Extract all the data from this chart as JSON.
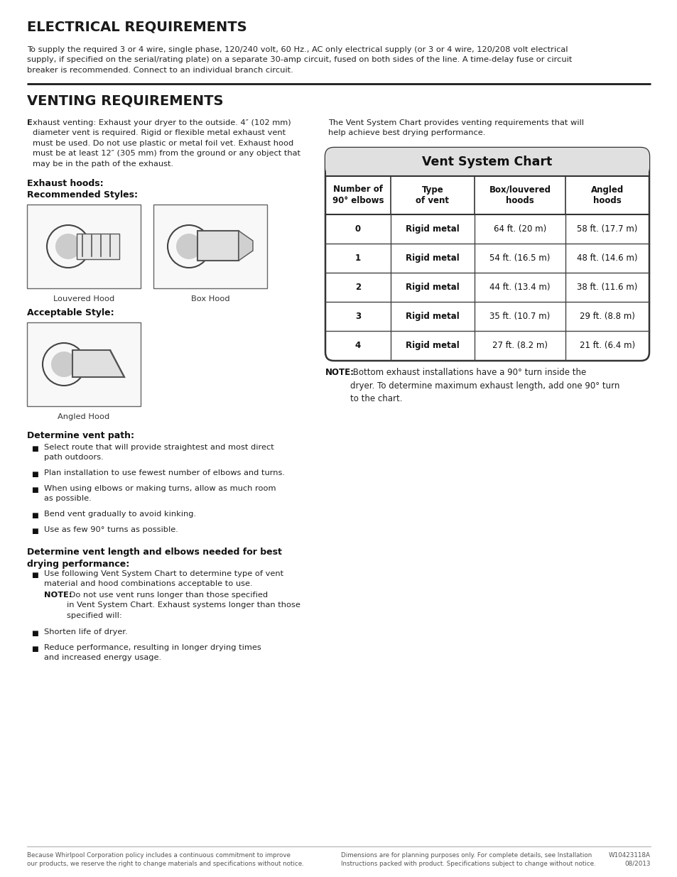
{
  "page_bg": "#ffffff",
  "section1_title": "ELECTRICAL REQUIREMENTS",
  "section1_body": "To supply the required 3 or 4 wire, single phase, 120/240 volt, 60 Hz., AC only electrical supply (or 3 or 4 wire, 120/208 volt electrical\nsupply, if specified on the serial/rating plate) on a separate 30-amp circuit, fused on both sides of the line. A time-delay fuse or circuit\nbreaker is recommended. Connect to an individual branch circuit.",
  "section2_title": "VENTING REQUIREMENTS",
  "venting_left_para_rest": "xhaust venting: Exhaust your dryer to the outside. 4″ (102 mm)\ndiameter vent is required. Rigid or flexible metal exhaust vent\nmust be used. Do not use plastic or metal foil vet. Exhaust hood\nmust be at least 12″ (305 mm) from the ground or any object that\nmay be in the path of the exhaust.",
  "venting_right_para": "The Vent System Chart provides venting requirements that will\nhelp achieve best drying performance.",
  "hoods_heading1": "Exhaust hoods:",
  "hoods_heading2": "Recommended Styles:",
  "louvered_label": "Louvered Hood",
  "box_label": "Box Hood",
  "acceptable_heading": "Acceptable Style:",
  "angled_label": "Angled Hood",
  "table_title": "Vent System Chart",
  "table_headers": [
    "Number of\n90° elbows",
    "Type\nof vent",
    "Box/louvered\nhoods",
    "Angled\nhoods"
  ],
  "table_rows": [
    [
      "0",
      "Rigid metal",
      "64 ft. (20 m)",
      "58 ft. (17.7 m)"
    ],
    [
      "1",
      "Rigid metal",
      "54 ft. (16.5 m)",
      "48 ft. (14.6 m)"
    ],
    [
      "2",
      "Rigid metal",
      "44 ft. (13.4 m)",
      "38 ft. (11.6 m)"
    ],
    [
      "3",
      "Rigid metal",
      "35 ft. (10.7 m)",
      "29 ft. (8.8 m)"
    ],
    [
      "4",
      "Rigid metal",
      "27 ft. (8.2 m)",
      "21 ft. (6.4 m)"
    ]
  ],
  "table_note_bold": "NOTE:",
  "table_note_rest": " Bottom exhaust installations have a 90° turn inside the\ndryer. To determine maximum exhaust length, add one 90° turn\nto the chart.",
  "vent_path_heading": "Determine vent path:",
  "vent_path_bullets": [
    "Select route that will provide straightest and most direct\npath outdoors.",
    "Plan installation to use fewest number of elbows and turns.",
    "When using elbows or making turns, allow as much room\nas possible.",
    "Bend vent gradually to avoid kinking.",
    "Use as few 90° turns as possible."
  ],
  "vent_length_heading": "Determine vent length and elbows needed for best\ndrying performance:",
  "vent_length_bullet": "Use following Vent System Chart to determine type of vent\nmaterial and hood combinations acceptable to use.",
  "vent_length_note_bold": "NOTE:",
  "vent_length_note_rest": " Do not use vent runs longer than those specified\nin Vent System Chart. Exhaust systems longer than those\nspecified will:",
  "vent_length_sub_bullets": [
    "Shorten life of dryer.",
    "Reduce performance, resulting in longer drying times\nand increased energy usage."
  ],
  "footer_left1": "Because Whirlpool Corporation policy includes a continuous commitment to improve",
  "footer_left2": "our products, we reserve the right to change materials and specifications without notice.",
  "footer_mid1": "Dimensions are for planning purposes only. For complete details, see Installation",
  "footer_mid2": "Instructions packed with product. Specifications subject to change without notice.",
  "footer_right": "W10423118A\n08/2013"
}
